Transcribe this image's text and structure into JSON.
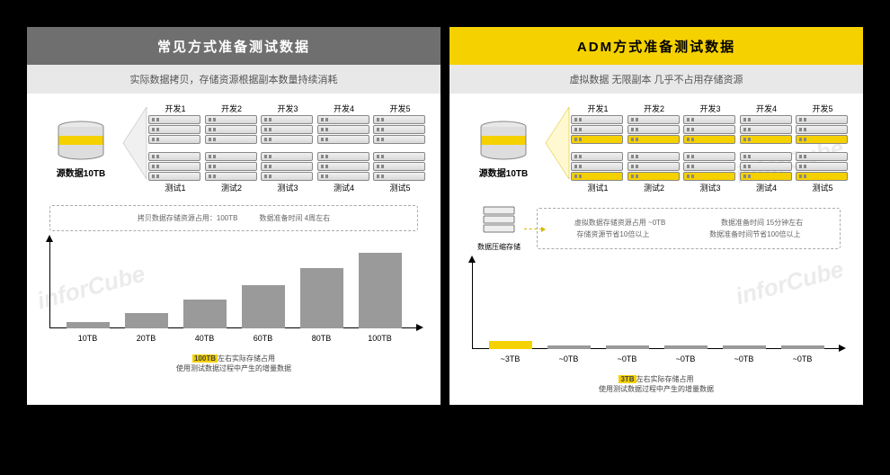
{
  "watermark_text": "inforCube",
  "left": {
    "header_bg": "#6f6f6f",
    "header_text": "常见方式准备测试数据",
    "sub": "实际数据拷贝，存储资源根据副本数量持续消耗",
    "source_label": "源数据10TB",
    "accent": "#f5d100",
    "dev_cols": [
      {
        "label": "开发1",
        "units": 3,
        "accent_idx": -1
      },
      {
        "label": "开发2",
        "units": 3,
        "accent_idx": -1
      },
      {
        "label": "开发3",
        "units": 3,
        "accent_idx": -1
      },
      {
        "label": "开发4",
        "units": 3,
        "accent_idx": -1
      },
      {
        "label": "开发5",
        "units": 3,
        "accent_idx": -1
      }
    ],
    "test_cols": [
      {
        "label": "测试1",
        "units": 3,
        "accent_idx": -1
      },
      {
        "label": "测试2",
        "units": 3,
        "accent_idx": -1
      },
      {
        "label": "测试3",
        "units": 3,
        "accent_idx": -1
      },
      {
        "label": "测试4",
        "units": 3,
        "accent_idx": -1
      },
      {
        "label": "测试5",
        "units": 3,
        "accent_idx": -1
      }
    ],
    "info": [
      "拷贝数据存储资源占用：100TB",
      "数据准备时间 4周左右"
    ],
    "bars": [
      {
        "label": "10TB",
        "value": 8,
        "color": "#9a9a9a"
      },
      {
        "label": "20TB",
        "value": 18,
        "color": "#9a9a9a"
      },
      {
        "label": "40TB",
        "value": 34,
        "color": "#9a9a9a"
      },
      {
        "label": "60TB",
        "value": 52,
        "color": "#9a9a9a"
      },
      {
        "label": "80TB",
        "value": 72,
        "color": "#9a9a9a"
      },
      {
        "label": "100TB",
        "value": 90,
        "color": "#9a9a9a"
      }
    ],
    "footnote_hl": "100TB",
    "footnote_l1": "左右实际存储占用",
    "footnote_l2": "使用测试数据过程中产生的增量数据"
  },
  "right": {
    "header_bg": "#f5d100",
    "header_text_color": "#000",
    "header_text": "ADM方式准备测试数据",
    "sub": "虚拟数据 无限副本 几乎不占用存储资源",
    "source_label": "源数据10TB",
    "accent": "#f5d100",
    "dev_cols": [
      {
        "label": "开发1",
        "units": 3,
        "accent_idx": 2
      },
      {
        "label": "开发2",
        "units": 3,
        "accent_idx": 2
      },
      {
        "label": "开发3",
        "units": 3,
        "accent_idx": 2
      },
      {
        "label": "开发4",
        "units": 3,
        "accent_idx": 2
      },
      {
        "label": "开发5",
        "units": 3,
        "accent_idx": 2
      }
    ],
    "test_cols": [
      {
        "label": "测试1",
        "units": 3,
        "accent_idx": 2
      },
      {
        "label": "测试2",
        "units": 3,
        "accent_idx": 2
      },
      {
        "label": "测试3",
        "units": 3,
        "accent_idx": 2
      },
      {
        "label": "测试4",
        "units": 3,
        "accent_idx": 2
      },
      {
        "label": "测试5",
        "units": 3,
        "accent_idx": 2
      }
    ],
    "compress_label": "数据压缩存储",
    "info_pairs": [
      [
        "虚拟数据存储资源占用 ~0TB",
        "数据准备时间 15分钟左右"
      ],
      [
        "存储资源节省10倍以上",
        "数据准备时间节省100倍以上"
      ]
    ],
    "bars": [
      {
        "label": "~3TB",
        "value": 10,
        "color": "#f5d100"
      },
      {
        "label": "~0TB",
        "value": 4,
        "color": "#9a9a9a"
      },
      {
        "label": "~0TB",
        "value": 4,
        "color": "#9a9a9a"
      },
      {
        "label": "~0TB",
        "value": 4,
        "color": "#9a9a9a"
      },
      {
        "label": "~0TB",
        "value": 4,
        "color": "#9a9a9a"
      },
      {
        "label": "~0TB",
        "value": 4,
        "color": "#9a9a9a"
      }
    ],
    "footnote_hl": "3TB",
    "footnote_l1": "左右实际存储占用",
    "footnote_l2": "使用测试数据过程中产生的增量数据"
  }
}
